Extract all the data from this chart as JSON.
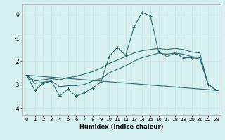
{
  "xlabel": "Humidex (Indice chaleur)",
  "background_color": "#d6f0ef",
  "grid_color": "#c8e8e6",
  "line_color": "#2a6b6b",
  "xlim": [
    -0.5,
    23.5
  ],
  "ylim": [
    -4.3,
    0.45
  ],
  "yticks": [
    0,
    -1,
    -2,
    -3,
    -4
  ],
  "xticks": [
    0,
    1,
    2,
    3,
    4,
    5,
    6,
    7,
    8,
    9,
    10,
    11,
    12,
    13,
    14,
    15,
    16,
    17,
    18,
    19,
    20,
    21,
    22,
    23
  ],
  "line1_x": [
    0,
    1,
    2,
    3,
    4,
    5,
    6,
    7,
    8,
    9,
    10,
    11,
    12,
    13,
    14,
    15,
    16,
    17,
    18,
    19,
    20,
    21,
    22,
    23
  ],
  "line1_y": [
    -2.6,
    -3.25,
    -2.95,
    -2.85,
    -3.5,
    -3.2,
    -3.5,
    -3.35,
    -3.15,
    -2.9,
    -1.8,
    -1.4,
    -1.75,
    -0.55,
    0.1,
    -0.05,
    -1.6,
    -1.8,
    -1.65,
    -1.85,
    -1.85,
    -1.9,
    -3.0,
    -3.25
  ],
  "line2_x": [
    0,
    1,
    2,
    3,
    4,
    5,
    6,
    7,
    8,
    9,
    10,
    11,
    12,
    13,
    14,
    15,
    16,
    17,
    18,
    19,
    20,
    21,
    22,
    23
  ],
  "line2_y": [
    -2.6,
    -2.95,
    -2.9,
    -2.85,
    -3.1,
    -3.05,
    -3.05,
    -3.0,
    -2.85,
    -2.75,
    -2.5,
    -2.35,
    -2.2,
    -2.0,
    -1.85,
    -1.75,
    -1.65,
    -1.7,
    -1.65,
    -1.7,
    -1.8,
    -1.85,
    -3.0,
    -3.25
  ],
  "line3_x": [
    0,
    23
  ],
  "line3_y": [
    -2.6,
    -3.25
  ],
  "line4_x": [
    0,
    1,
    2,
    3,
    4,
    5,
    6,
    7,
    8,
    9,
    10,
    11,
    12,
    13,
    14,
    15,
    16,
    17,
    18,
    19,
    20,
    21,
    22,
    23
  ],
  "line4_y": [
    -2.6,
    -2.85,
    -2.8,
    -2.75,
    -2.8,
    -2.7,
    -2.65,
    -2.55,
    -2.45,
    -2.3,
    -2.1,
    -1.95,
    -1.8,
    -1.65,
    -1.55,
    -1.5,
    -1.45,
    -1.5,
    -1.45,
    -1.5,
    -1.6,
    -1.65,
    -3.0,
    -3.25
  ]
}
